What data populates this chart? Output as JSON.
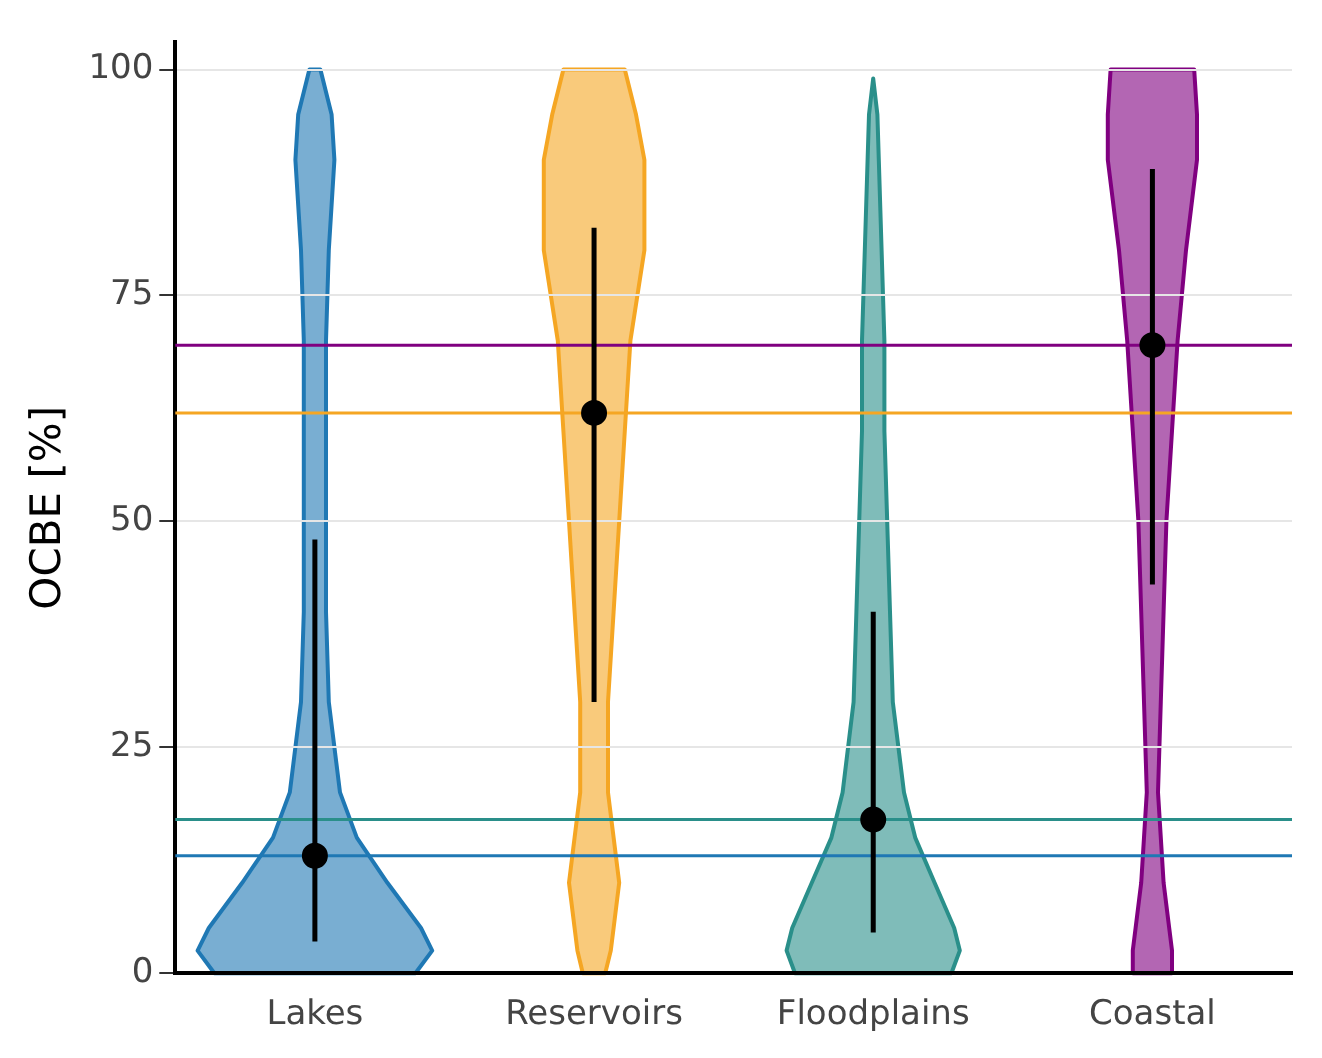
{
  "chart_data": {
    "type": "scatter",
    "ylabel": "OCBE [%]",
    "categories": [
      "Lakes",
      "Reservoirs",
      "Floodplains",
      "Coastal"
    ],
    "ylim": [
      0,
      103
    ],
    "yticks": [
      0,
      25,
      50,
      75,
      100
    ],
    "grid": "y",
    "marker": "circle",
    "series": [
      {
        "color": "#000000",
        "values": [
          13,
          62,
          17,
          69.5
        ],
        "errors": [
          [
            3.5,
            48
          ],
          [
            30,
            82.5
          ],
          [
            4.5,
            40
          ],
          [
            43,
            89
          ]
        ]
      }
    ],
    "ref_lines": [
      {
        "axis": "y",
        "value": 69.5,
        "color": "#800080"
      },
      {
        "axis": "y",
        "value": 62,
        "color": "#f5a623"
      },
      {
        "axis": "y",
        "value": 17,
        "color": "#2a8f8a"
      },
      {
        "axis": "y",
        "value": 13,
        "color": "#1f78b4"
      }
    ]
  }
}
